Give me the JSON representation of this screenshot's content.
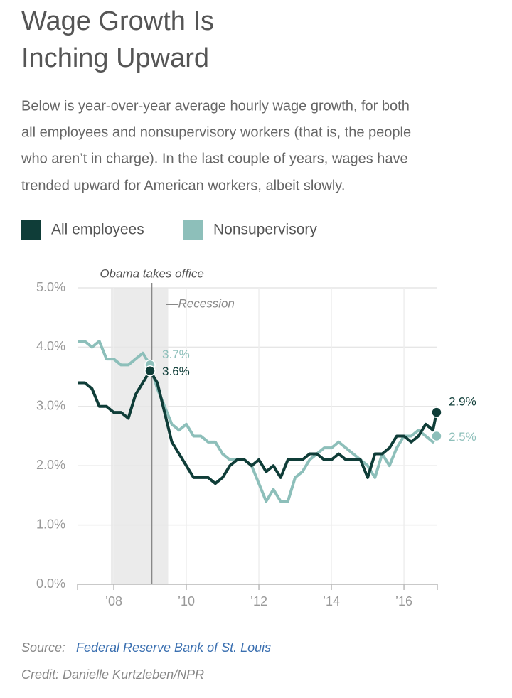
{
  "chart_data": {
    "type": "line",
    "title_lines": [
      "Wage Growth Is",
      "Inching Upward"
    ],
    "subtitle_lines": [
      "Below is year-over-year average hourly wage growth, for both",
      "all employees and nonsupervisory workers (that is, the people",
      "who aren’t in charge). In the last couple of years, wages have",
      "trended upward for American workers, albeit slowly."
    ],
    "x": [
      2007.0,
      2007.2,
      2007.4,
      2007.6,
      2007.8,
      2008.0,
      2008.2,
      2008.4,
      2008.6,
      2008.8,
      2009.0,
      2009.2,
      2009.4,
      2009.6,
      2009.8,
      2010.0,
      2010.2,
      2010.4,
      2010.6,
      2010.8,
      2011.0,
      2011.2,
      2011.4,
      2011.6,
      2011.8,
      2012.0,
      2012.2,
      2012.4,
      2012.6,
      2012.8,
      2013.0,
      2013.2,
      2013.4,
      2013.6,
      2013.8,
      2014.0,
      2014.2,
      2014.4,
      2014.6,
      2014.8,
      2015.0,
      2015.2,
      2015.4,
      2015.6,
      2015.8,
      2016.0,
      2016.2,
      2016.4,
      2016.6,
      2016.8,
      2016.9
    ],
    "series": [
      {
        "name": "All employees",
        "color": "#0f3d38",
        "values": [
          3.4,
          3.4,
          3.3,
          3.0,
          3.0,
          2.9,
          2.9,
          2.8,
          3.2,
          3.4,
          3.6,
          3.4,
          2.9,
          2.4,
          2.2,
          2.0,
          1.8,
          1.8,
          1.8,
          1.7,
          1.8,
          2.0,
          2.1,
          2.1,
          2.0,
          2.1,
          1.9,
          2.0,
          1.8,
          2.1,
          2.1,
          2.1,
          2.2,
          2.2,
          2.1,
          2.1,
          2.2,
          2.1,
          2.1,
          2.1,
          1.8,
          2.2,
          2.2,
          2.3,
          2.5,
          2.5,
          2.4,
          2.5,
          2.7,
          2.6,
          2.9
        ]
      },
      {
        "name": "Nonsupervisory",
        "color": "#8dbfba",
        "values": [
          4.1,
          4.1,
          4.0,
          4.1,
          3.8,
          3.8,
          3.7,
          3.7,
          3.8,
          3.9,
          3.7,
          3.3,
          3.0,
          2.7,
          2.6,
          2.7,
          2.5,
          2.5,
          2.4,
          2.4,
          2.2,
          2.1,
          2.1,
          2.1,
          2.0,
          1.7,
          1.4,
          1.6,
          1.4,
          1.4,
          1.8,
          1.9,
          2.1,
          2.2,
          2.3,
          2.3,
          2.4,
          2.3,
          2.2,
          2.1,
          2.0,
          1.8,
          2.2,
          2.0,
          2.3,
          2.5,
          2.5,
          2.6,
          2.5,
          2.4,
          2.5
        ]
      }
    ],
    "xlim": [
      2007.0,
      2016.92
    ],
    "xticks": [
      {
        "value": 2008,
        "label": "’08"
      },
      {
        "value": 2010,
        "label": "’10"
      },
      {
        "value": 2012,
        "label": "’12"
      },
      {
        "value": 2014,
        "label": "’14"
      },
      {
        "value": 2016,
        "label": "’16"
      }
    ],
    "ylim": [
      0,
      5
    ],
    "yticks": [
      {
        "value": 0,
        "label": "0.0%"
      },
      {
        "value": 1,
        "label": "1.0%"
      },
      {
        "value": 2,
        "label": "2.0%"
      },
      {
        "value": 3,
        "label": "3.0%"
      },
      {
        "value": 4,
        "label": "4.0%"
      },
      {
        "value": 5,
        "label": "5.0%"
      }
    ],
    "grid": true,
    "shading": {
      "label": "—Recession",
      "x": [
        2007.92,
        2009.5
      ],
      "color": "#ebebeb"
    },
    "vline": {
      "label": "Obama takes office",
      "x": 2009.05,
      "color": "#888888"
    },
    "annotations": [
      {
        "text": "3.7%",
        "x": 2009.0,
        "y": 3.7,
        "color": "#8dbfba"
      },
      {
        "text": "3.6%",
        "x": 2009.0,
        "y": 3.6,
        "color": "#0f3d38"
      },
      {
        "text": "2.9%",
        "x": 2016.9,
        "y": 2.9,
        "color": "#0f3d38"
      },
      {
        "text": "2.5%",
        "x": 2016.9,
        "y": 2.5,
        "color": "#8dbfba"
      }
    ],
    "source_label": "Source:",
    "source": "Federal Reserve Bank of St. Louis",
    "credit": "Credit: Danielle Kurtzleben/NPR"
  }
}
